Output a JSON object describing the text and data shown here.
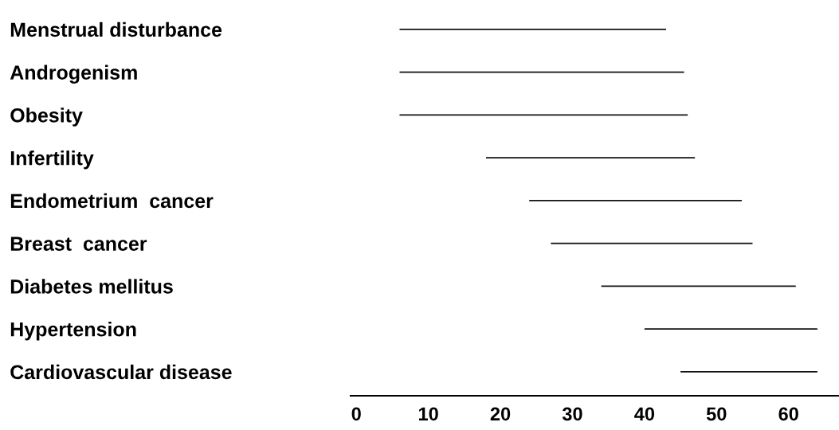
{
  "chart_data": {
    "type": "bar",
    "orientation": "horizontal",
    "categories": [
      "Menstrual disturbance",
      "Androgenism",
      "Obesity",
      "Infertility",
      "Endometrium  cancer",
      "Breast  cancer",
      "Diabetes mellitus",
      "Hypertension",
      "Cardiovascular disease"
    ],
    "base": [
      6,
      6,
      6,
      18,
      24,
      27,
      34,
      40,
      45
    ],
    "values": [
      37,
      39.5,
      40,
      29,
      29.5,
      28,
      27,
      24,
      19
    ],
    "color": "#111111",
    "xlim": [
      -0.8,
      67
    ],
    "xticks": [
      0,
      10,
      20,
      30,
      40,
      50,
      60
    ],
    "grid": false,
    "legend": false
  }
}
